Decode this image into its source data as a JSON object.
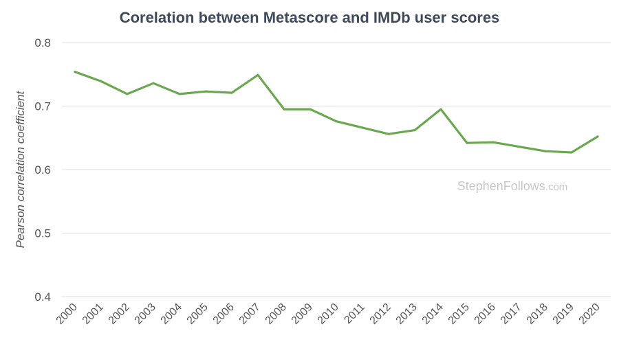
{
  "chart_data": {
    "type": "line",
    "title": "Corelation between Metascore and IMDb user scores",
    "xlabel": "",
    "ylabel": "Pearson correlation coefficient",
    "ylim": [
      0.4,
      0.8
    ],
    "yticks": [
      "0.4",
      "0.5",
      "0.6",
      "0.7",
      "0.8"
    ],
    "grid": true,
    "categories": [
      "2000",
      "2001",
      "2002",
      "2003",
      "2004",
      "2005",
      "2006",
      "2007",
      "2008",
      "2009",
      "2010",
      "2011",
      "2012",
      "2013",
      "2014",
      "2015",
      "2016",
      "2017",
      "2018",
      "2019",
      "2020"
    ],
    "series": [
      {
        "name": "Pearson correlation coefficient",
        "color": "#6aa84f",
        "values": [
          0.754,
          0.739,
          0.719,
          0.736,
          0.719,
          0.723,
          0.721,
          0.749,
          0.695,
          0.695,
          0.676,
          0.666,
          0.656,
          0.662,
          0.695,
          0.642,
          0.643,
          0.636,
          0.629,
          0.627,
          0.652
        ]
      }
    ]
  },
  "watermark": {
    "main": "StephenFollows",
    "suffix": ".com"
  }
}
